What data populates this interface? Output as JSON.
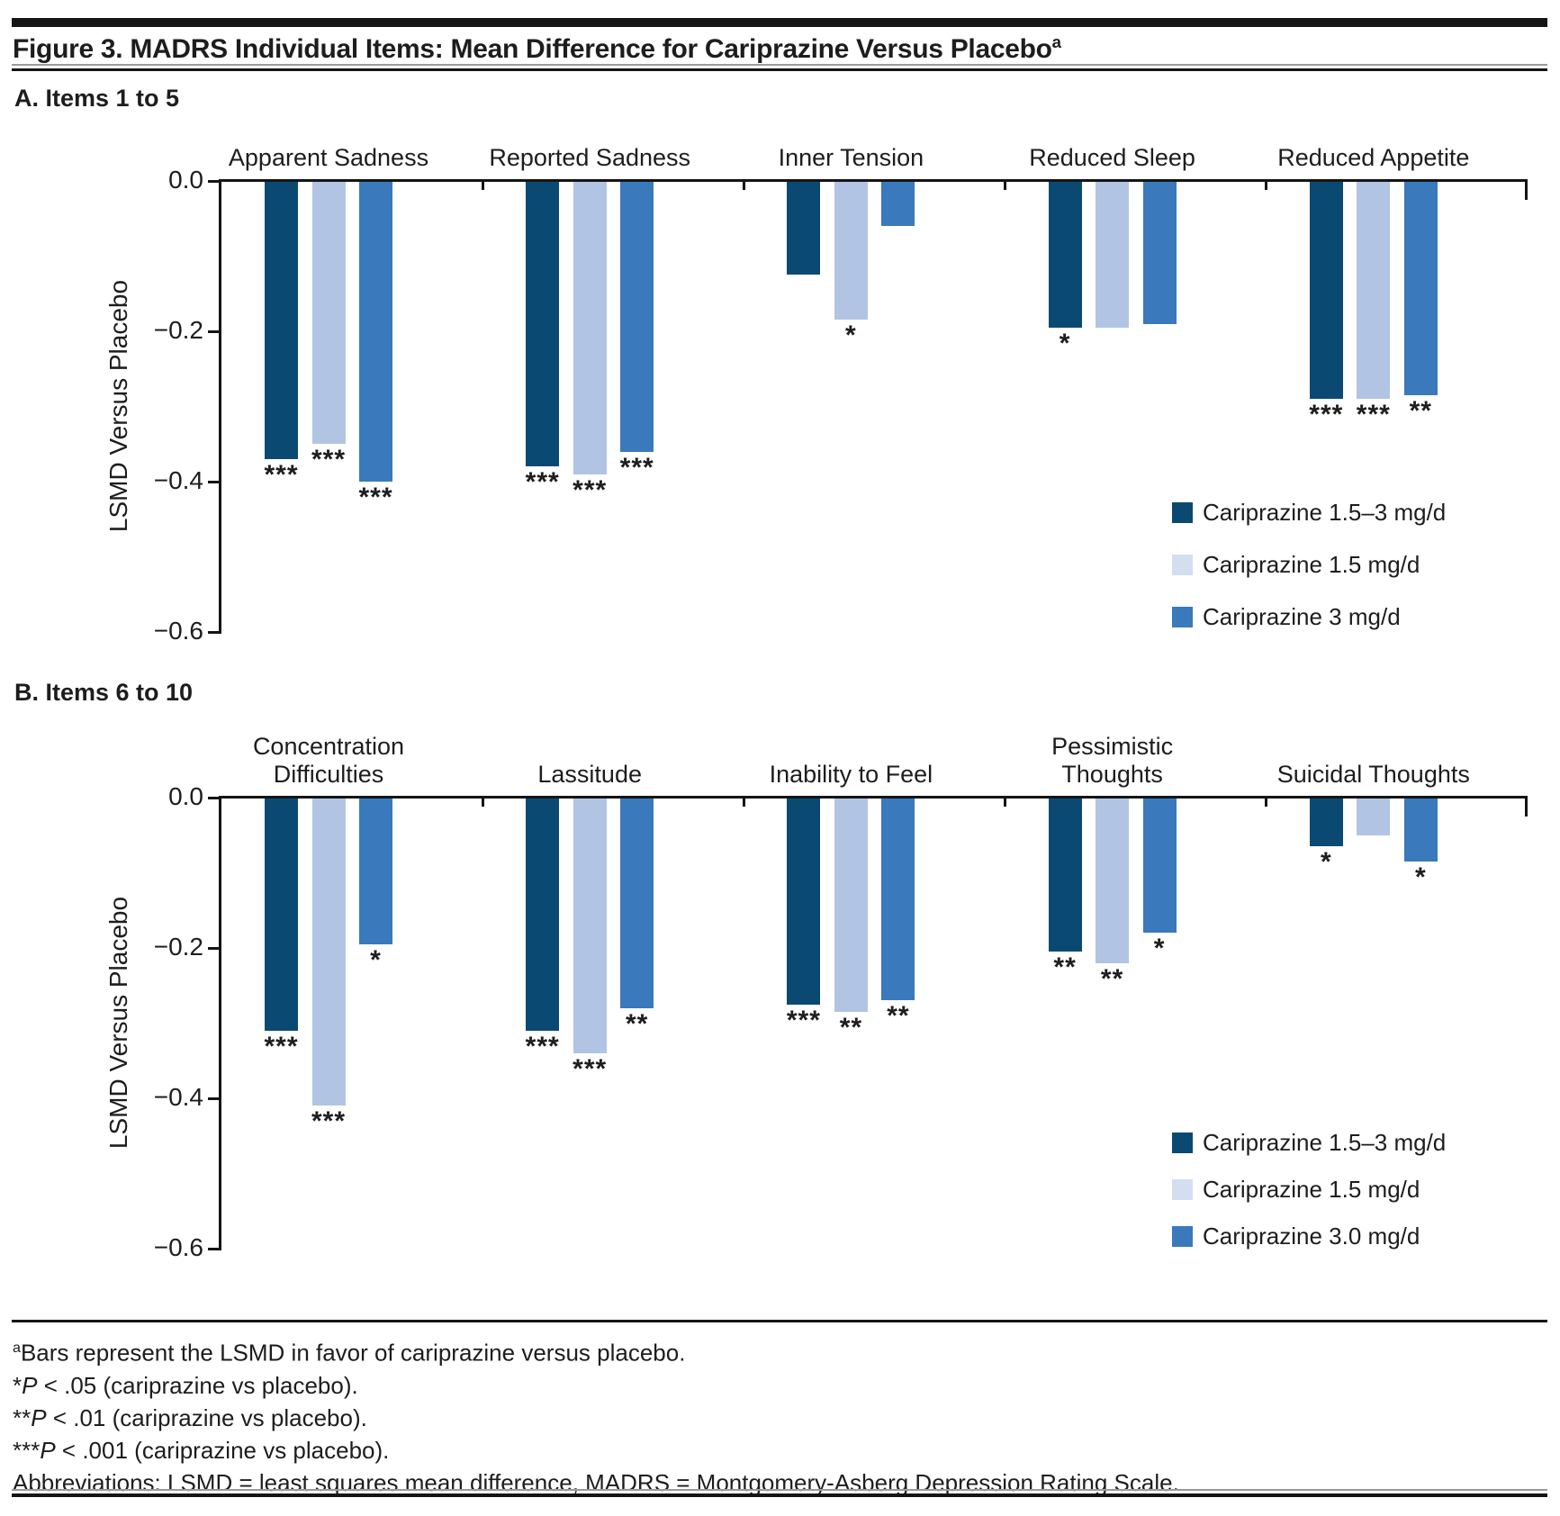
{
  "figure": {
    "title": "Figure 3. MADRS Individual Items: Mean Difference for Cariprazine Versus Placebo",
    "title_sup": "a"
  },
  "colors": {
    "cariprazine_15_3": "#0a4a72",
    "cariprazine_15": "#b1c4e3",
    "cariprazine_15_legend": "#d3def1",
    "cariprazine_3": "#3a79bc",
    "axis": "#151515",
    "text": "#1d1d1f"
  },
  "chart_data": [
    {
      "type": "bar",
      "panel": "a",
      "section_label": "A. Items 1 to 5",
      "ylabel": "LSMD Versus Placebo",
      "ylim": [
        -0.6,
        0.0
      ],
      "ytick_labels": [
        "0.0",
        "−0.2",
        "−0.4",
        "−0.6"
      ],
      "ytick_values": [
        0,
        -0.2,
        -0.4,
        -0.6
      ],
      "grid": false,
      "legend_position": "bottom-right",
      "categories": [
        "Apparent Sadness",
        "Reported Sadness",
        "Inner Tension",
        "Reduced Sleep",
        "Reduced Appetite"
      ],
      "series": [
        {
          "name": "Cariprazine 1.5–3 mg/d",
          "color_key": "cariprazine_15_3",
          "values": [
            -0.37,
            -0.38,
            -0.125,
            -0.195,
            -0.29
          ],
          "sig": [
            "***",
            "***",
            "",
            "*",
            "***"
          ]
        },
        {
          "name": "Cariprazine 1.5 mg/d",
          "color_key": "cariprazine_15",
          "legend_color_key": "cariprazine_15_legend",
          "values": [
            -0.35,
            -0.39,
            -0.185,
            -0.195,
            -0.29
          ],
          "sig": [
            "***",
            "***",
            "*",
            "",
            "***"
          ]
        },
        {
          "name": "Cariprazine 3 mg/d",
          "color_key": "cariprazine_3",
          "values": [
            -0.4,
            -0.36,
            -0.06,
            -0.19,
            -0.285
          ],
          "sig": [
            "***",
            "***",
            "",
            "",
            "**"
          ]
        }
      ]
    },
    {
      "type": "bar",
      "panel": "b",
      "section_label": "B. Items 6 to 10",
      "ylabel": "LSMD Versus Placebo",
      "ylim": [
        -0.6,
        0.0
      ],
      "ytick_labels": [
        "0.0",
        "−0.2",
        "−0.4",
        "−0.6"
      ],
      "ytick_values": [
        0,
        -0.2,
        -0.4,
        -0.6
      ],
      "grid": false,
      "legend_position": "bottom-right",
      "categories": [
        "Concentration\nDifficulties",
        "Lassitude",
        "Inability to Feel",
        "Pessimistic\nThoughts",
        "Suicidal Thoughts"
      ],
      "series": [
        {
          "name": "Cariprazine 1.5–3 mg/d",
          "color_key": "cariprazine_15_3",
          "values": [
            -0.31,
            -0.31,
            -0.275,
            -0.205,
            -0.065
          ],
          "sig": [
            "***",
            "***",
            "***",
            "**",
            "*"
          ]
        },
        {
          "name": "Cariprazine 1.5 mg/d",
          "color_key": "cariprazine_15",
          "legend_color_key": "cariprazine_15_legend",
          "values": [
            -0.41,
            -0.34,
            -0.285,
            -0.22,
            -0.05
          ],
          "sig": [
            "***",
            "***",
            "**",
            "**",
            ""
          ]
        },
        {
          "name": "Cariprazine 3.0 mg/d",
          "color_key": "cariprazine_3",
          "values": [
            -0.195,
            -0.28,
            -0.27,
            -0.18,
            -0.085
          ],
          "sig": [
            "*",
            "**",
            "**",
            "*",
            "*"
          ]
        }
      ]
    }
  ],
  "footnotes": {
    "note_a": {
      "sup": "a",
      "text": "Bars represent the LSMD in favor of cariprazine versus placebo."
    },
    "sig_notes": [
      {
        "stars": "*",
        "p": "P",
        "text": " < .05 (cariprazine vs placebo)."
      },
      {
        "stars": "**",
        "p": "P",
        "text": " < .01 (cariprazine vs placebo)."
      },
      {
        "stars": "***",
        "p": "P",
        "text": " < .001 (cariprazine vs placebo)."
      }
    ],
    "abbreviations": "Abbreviations: LSMD = least squares mean difference, MADRS = Montgomery-Asberg Depression Rating Scale."
  }
}
